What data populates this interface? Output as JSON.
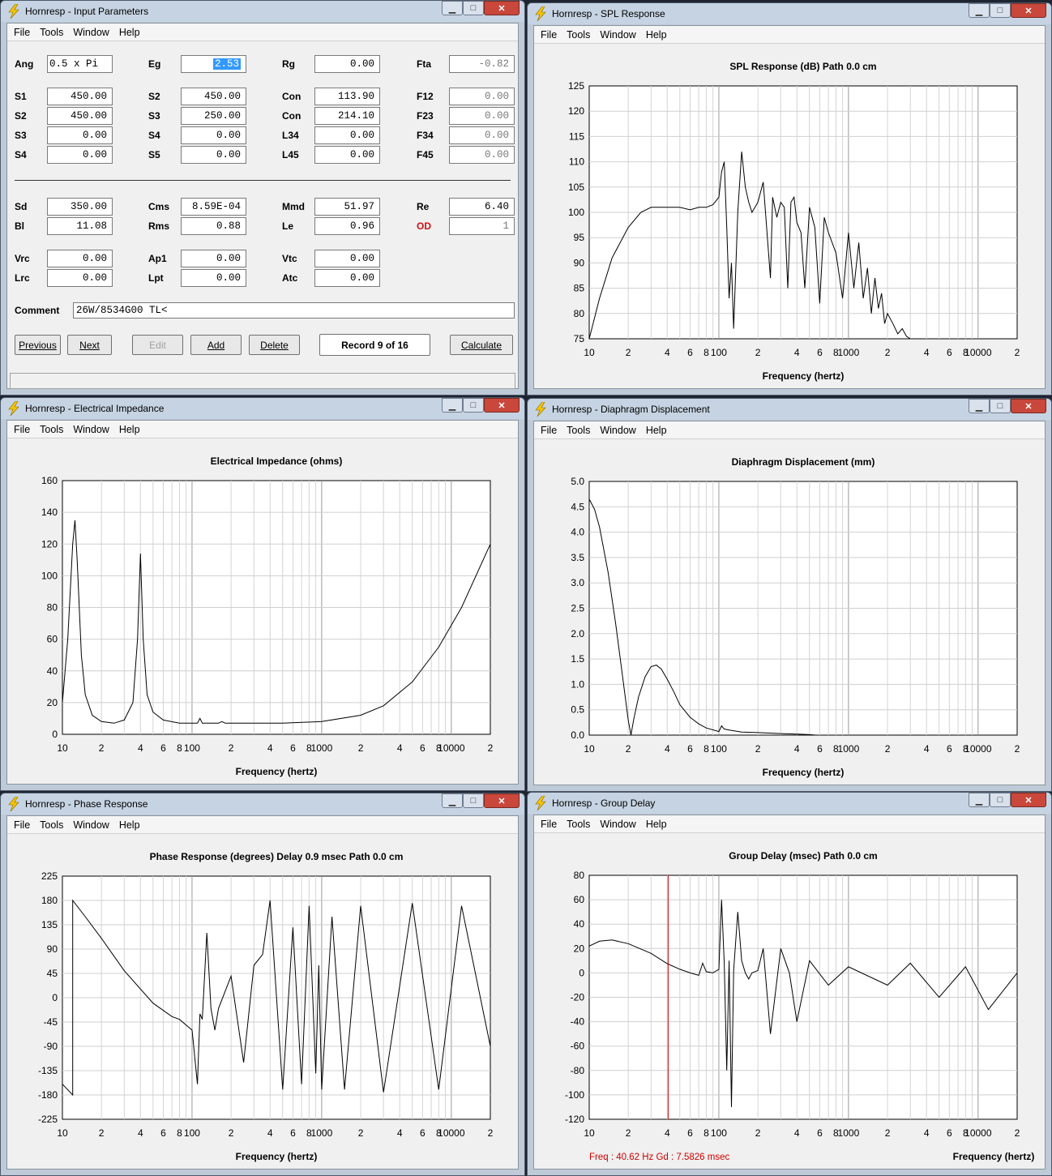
{
  "menu": [
    "File",
    "Tools",
    "Window",
    "Help"
  ],
  "input_window": {
    "title": "Hornresp - Input Parameters",
    "rows": [
      {
        "fields": [
          {
            "label": "Ang",
            "value": "0.5 x Pi",
            "left_align": true
          },
          {
            "label": "Eg",
            "value": "2.53",
            "selected": true
          },
          {
            "label": "Rg",
            "value": "0.00"
          },
          {
            "label": "Fta",
            "value": "-0.82",
            "readonly": true
          }
        ]
      },
      {
        "fields": [
          {
            "label": "S1",
            "value": "450.00"
          },
          {
            "label": "S2",
            "value": "450.00"
          },
          {
            "label": "Con",
            "value": "113.90"
          },
          {
            "label": "F12",
            "value": "0.00",
            "readonly": true
          }
        ]
      },
      {
        "fields": [
          {
            "label": "S2",
            "value": "450.00"
          },
          {
            "label": "S3",
            "value": "250.00"
          },
          {
            "label": "Con",
            "value": "214.10"
          },
          {
            "label": "F23",
            "value": "0.00",
            "readonly": true
          }
        ]
      },
      {
        "fields": [
          {
            "label": "S3",
            "value": "0.00"
          },
          {
            "label": "S4",
            "value": "0.00"
          },
          {
            "label": "L34",
            "value": "0.00"
          },
          {
            "label": "F34",
            "value": "0.00",
            "readonly": true
          }
        ]
      },
      {
        "fields": [
          {
            "label": "S4",
            "value": "0.00"
          },
          {
            "label": "S5",
            "value": "0.00"
          },
          {
            "label": "L45",
            "value": "0.00"
          },
          {
            "label": "F45",
            "value": "0.00",
            "readonly": true
          }
        ]
      },
      {
        "fields": [
          {
            "label": "Sd",
            "value": "350.00"
          },
          {
            "label": "Cms",
            "value": "8.59E-04"
          },
          {
            "label": "Mmd",
            "value": "51.97"
          },
          {
            "label": "Re",
            "value": "6.40"
          }
        ]
      },
      {
        "fields": [
          {
            "label": "Bl",
            "value": "11.08"
          },
          {
            "label": "Rms",
            "value": "0.88"
          },
          {
            "label": "Le",
            "value": "0.96"
          },
          {
            "label": "OD",
            "value": "1",
            "readonly": true,
            "red_label": true
          }
        ]
      },
      {
        "fields": [
          {
            "label": "Vrc",
            "value": "0.00"
          },
          {
            "label": "Ap1",
            "value": "0.00"
          },
          {
            "label": "Vtc",
            "value": "0.00"
          }
        ]
      },
      {
        "fields": [
          {
            "label": "Lrc",
            "value": "0.00"
          },
          {
            "label": "Lpt",
            "value": "0.00"
          },
          {
            "label": "Atc",
            "value": "0.00"
          }
        ]
      }
    ],
    "comment_label": "Comment",
    "comment_value": "26W/8534G00 TL<",
    "buttons": {
      "previous": "Previous",
      "next": "Next",
      "edit": "Edit",
      "add": "Add",
      "delete": "Delete",
      "calculate": "Calculate"
    },
    "record": "Record 9 of 16"
  },
  "x_axis_labels": [
    "10",
    "2",
    "4",
    "6",
    "8",
    "100",
    "2",
    "4",
    "6",
    "8",
    "1000",
    "2",
    "4",
    "6",
    "8",
    "10000",
    "2"
  ],
  "x_axis_title": "Frequency (hertz)",
  "windows": {
    "spl": {
      "title": "Hornresp - SPL Response",
      "chart_title": "SPL Response (dB)   Path 0.0 cm"
    },
    "imp": {
      "title": "Hornresp - Electrical Impedance",
      "chart_title": "Electrical Impedance (ohms)"
    },
    "disp": {
      "title": "Hornresp - Diaphragm Displacement",
      "chart_title": "Diaphragm Displacement (mm)"
    },
    "phase": {
      "title": "Hornresp - Phase Response",
      "chart_title": "Phase Response (degrees)    Delay 0.9 msec    Path 0.0 cm"
    },
    "gd": {
      "title": "Hornresp - Group Delay",
      "chart_title": "Group Delay (msec)   Path 0.0 cm",
      "status": "Freq : 40.62 Hz     Gd : 7.5826 msec"
    }
  },
  "chart_data": [
    {
      "id": "spl",
      "type": "line",
      "title": "SPL Response (dB)   Path 0.0 cm",
      "xlabel": "Frequency (hertz)",
      "ylabel": "",
      "xscale": "log",
      "xlim": [
        10,
        20000
      ],
      "ylim": [
        75,
        125
      ],
      "yticks": [
        125,
        120,
        115,
        110,
        105,
        100,
        95,
        90,
        85,
        80,
        75
      ],
      "x": [
        10,
        12,
        15,
        20,
        25,
        30,
        40,
        50,
        60,
        70,
        80,
        90,
        100,
        105,
        110,
        115,
        120,
        125,
        130,
        140,
        150,
        160,
        170,
        180,
        190,
        200,
        220,
        250,
        260,
        280,
        300,
        320,
        340,
        360,
        380,
        400,
        430,
        460,
        500,
        550,
        600,
        650,
        700,
        800,
        900,
        1000,
        1100,
        1200,
        1300,
        1400,
        1500,
        1600,
        1700,
        1800,
        1900,
        2000,
        2200,
        2400,
        2600,
        2800,
        3000
      ],
      "y": [
        75,
        83,
        91,
        97,
        100,
        101,
        101,
        101,
        100.5,
        101,
        101,
        101.5,
        103,
        108,
        110,
        97,
        83,
        90,
        77,
        100,
        112,
        105,
        102,
        100,
        101,
        102,
        106,
        87,
        103,
        99,
        102,
        101,
        85,
        102,
        103,
        98,
        96,
        85,
        101,
        97,
        82,
        99,
        96,
        92,
        83,
        96,
        85,
        94,
        83,
        89,
        80,
        87,
        81,
        84,
        78,
        80,
        78,
        76,
        77,
        75.5,
        75
      ]
    },
    {
      "id": "imp",
      "type": "line",
      "title": "Electrical Impedance (ohms)",
      "xlabel": "Frequency (hertz)",
      "ylabel": "",
      "xscale": "log",
      "xlim": [
        10,
        20000
      ],
      "ylim": [
        0,
        160
      ],
      "yticks": [
        160,
        140,
        120,
        100,
        80,
        60,
        40,
        20,
        0
      ],
      "x": [
        10,
        11,
        12,
        12.5,
        13,
        14,
        15,
        17,
        20,
        25,
        30,
        35,
        38,
        40,
        42,
        45,
        50,
        60,
        80,
        100,
        110,
        115,
        120,
        140,
        160,
        170,
        180,
        200,
        300,
        500,
        1000,
        2000,
        3000,
        5000,
        8000,
        12000,
        20000
      ],
      "y": [
        20,
        60,
        120,
        135,
        110,
        50,
        25,
        12,
        8,
        7,
        9,
        20,
        60,
        114,
        60,
        25,
        14,
        9,
        7,
        7,
        7,
        10,
        7,
        7,
        7,
        8,
        7,
        7,
        7,
        7,
        8,
        12,
        18,
        33,
        55,
        80,
        120
      ]
    },
    {
      "id": "disp",
      "type": "line",
      "title": "Diaphragm Displacement (mm)",
      "xlabel": "Frequency (hertz)",
      "ylabel": "",
      "xscale": "log",
      "xlim": [
        10,
        20000
      ],
      "ylim": [
        0,
        5
      ],
      "yticks": [
        5.0,
        4.5,
        4.0,
        3.5,
        3.0,
        2.5,
        2.0,
        1.5,
        1.0,
        0.5,
        0.0
      ],
      "x": [
        10,
        11,
        12,
        14,
        16,
        18,
        20,
        21,
        22,
        24,
        27,
        30,
        33,
        36,
        40,
        45,
        50,
        60,
        70,
        80,
        100,
        105,
        110,
        120,
        150,
        200,
        300,
        400,
        500,
        560
      ],
      "y": [
        4.65,
        4.45,
        4.1,
        3.2,
        2.2,
        1.2,
        0.3,
        0.0,
        0.3,
        0.75,
        1.15,
        1.35,
        1.38,
        1.3,
        1.1,
        0.85,
        0.6,
        0.35,
        0.22,
        0.14,
        0.07,
        0.18,
        0.12,
        0.1,
        0.06,
        0.05,
        0.03,
        0.02,
        0.01,
        0.0
      ]
    },
    {
      "id": "phase",
      "type": "line",
      "title": "Phase Response (degrees)",
      "xlabel": "Frequency (hertz)",
      "ylabel": "",
      "xscale": "log",
      "xlim": [
        10,
        20000
      ],
      "ylim": [
        -225,
        225
      ],
      "yticks": [
        225,
        180,
        135,
        90,
        45,
        0,
        -45,
        -90,
        -135,
        -180,
        -225
      ],
      "x": [
        10,
        12,
        12.01,
        15,
        20,
        30,
        50,
        70,
        80,
        100,
        110,
        115,
        120,
        130,
        140,
        150,
        160,
        200,
        250,
        300,
        350,
        400,
        500,
        600,
        700,
        800,
        900,
        950,
        1000,
        1200,
        1500,
        2000,
        3000,
        5000,
        8000,
        12000,
        20000
      ],
      "y": [
        -160,
        -180,
        180,
        150,
        110,
        50,
        -10,
        -35,
        -40,
        -60,
        -160,
        -30,
        -40,
        120,
        -20,
        -60,
        -20,
        40,
        -120,
        60,
        80,
        180,
        -170,
        130,
        -160,
        170,
        -140,
        60,
        -170,
        150,
        -170,
        170,
        -175,
        175,
        -170,
        170,
        -90
      ]
    },
    {
      "id": "gd",
      "type": "line",
      "title": "Group Delay (msec)",
      "xlabel": "Frequency (hertz)",
      "ylabel": "",
      "xscale": "log",
      "xlim": [
        10,
        20000
      ],
      "ylim": [
        -120,
        80
      ],
      "yticks": [
        80,
        60,
        40,
        20,
        0,
        -20,
        -40,
        -60,
        -80,
        -100,
        -120
      ],
      "cursor_freq": 40.62,
      "cursor_gd": 7.5826,
      "x": [
        10,
        12,
        15,
        20,
        30,
        40,
        50,
        60,
        70,
        75,
        80,
        90,
        100,
        105,
        110,
        115,
        120,
        125,
        130,
        140,
        150,
        160,
        170,
        180,
        200,
        220,
        250,
        300,
        350,
        400,
        500,
        700,
        1000,
        2000,
        3000,
        5000,
        8000,
        12000,
        20000
      ],
      "y": [
        22,
        26,
        27,
        24,
        16,
        7.6,
        3,
        0,
        -2,
        8,
        1,
        0,
        3,
        60,
        8,
        -80,
        10,
        -110,
        2,
        50,
        10,
        0,
        -5,
        0,
        2,
        20,
        -50,
        20,
        0,
        -40,
        10,
        -10,
        5,
        -10,
        8,
        -20,
        5,
        -30,
        0
      ]
    }
  ]
}
